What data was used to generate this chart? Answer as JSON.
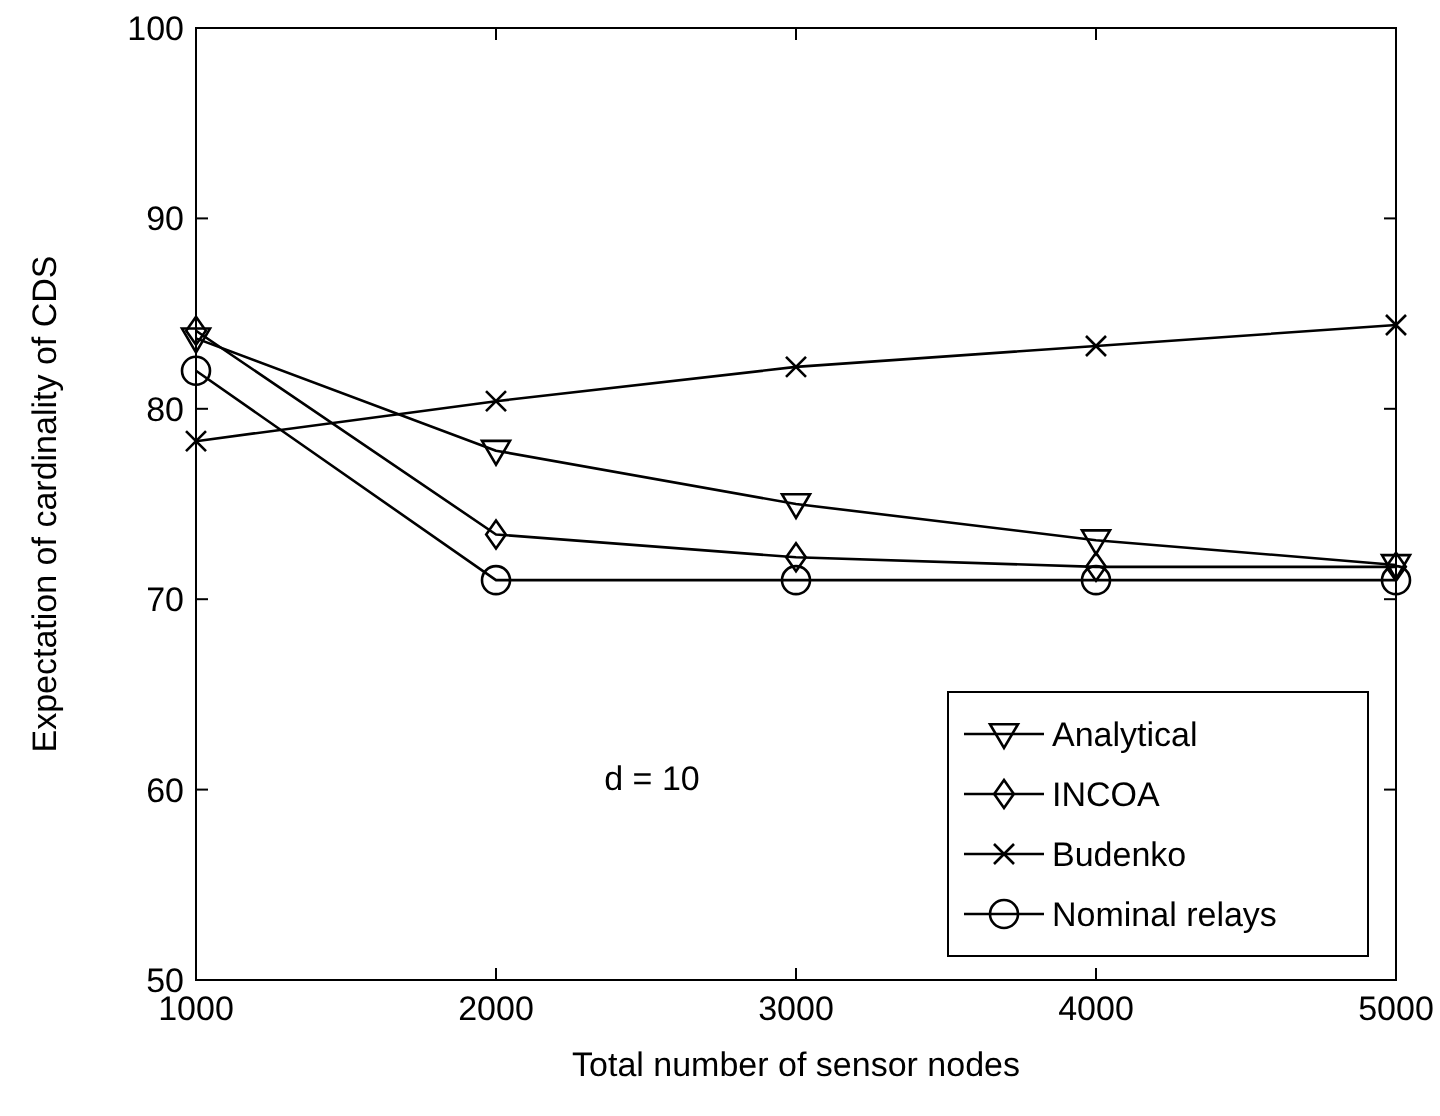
{
  "chart_data": {
    "type": "line",
    "xlabel": "Total number of sensor nodes",
    "ylabel": "Expectation of cardinality of CDS",
    "x": [
      1000,
      2000,
      3000,
      4000,
      5000
    ],
    "series": [
      {
        "name": "Analytical",
        "color": "#000000",
        "marker": "triangle",
        "values": [
          83.7,
          77.8,
          75.0,
          73.1,
          71.8
        ]
      },
      {
        "name": "INCOA",
        "color": "#000000",
        "marker": "diamond",
        "values": [
          84.1,
          73.4,
          72.2,
          71.7,
          71.7
        ]
      },
      {
        "name": "Budenko",
        "color": "#000000",
        "marker": "cross",
        "values": [
          78.3,
          80.4,
          82.2,
          83.3,
          84.4
        ]
      },
      {
        "name": "Nominal relays",
        "color": "#000000",
        "marker": "circle",
        "values": [
          82,
          71,
          71,
          71,
          71
        ]
      }
    ],
    "annotations": [
      "d = 10"
    ],
    "xlim": [
      1000,
      5000
    ],
    "xticks": [
      1000,
      2000,
      3000,
      4000,
      5000
    ],
    "ylim": [
      50,
      100
    ],
    "yticks": [
      50,
      60,
      70,
      80,
      90,
      100
    ],
    "grid": false,
    "legend": "bottom right",
    "line_style": "solid"
  }
}
